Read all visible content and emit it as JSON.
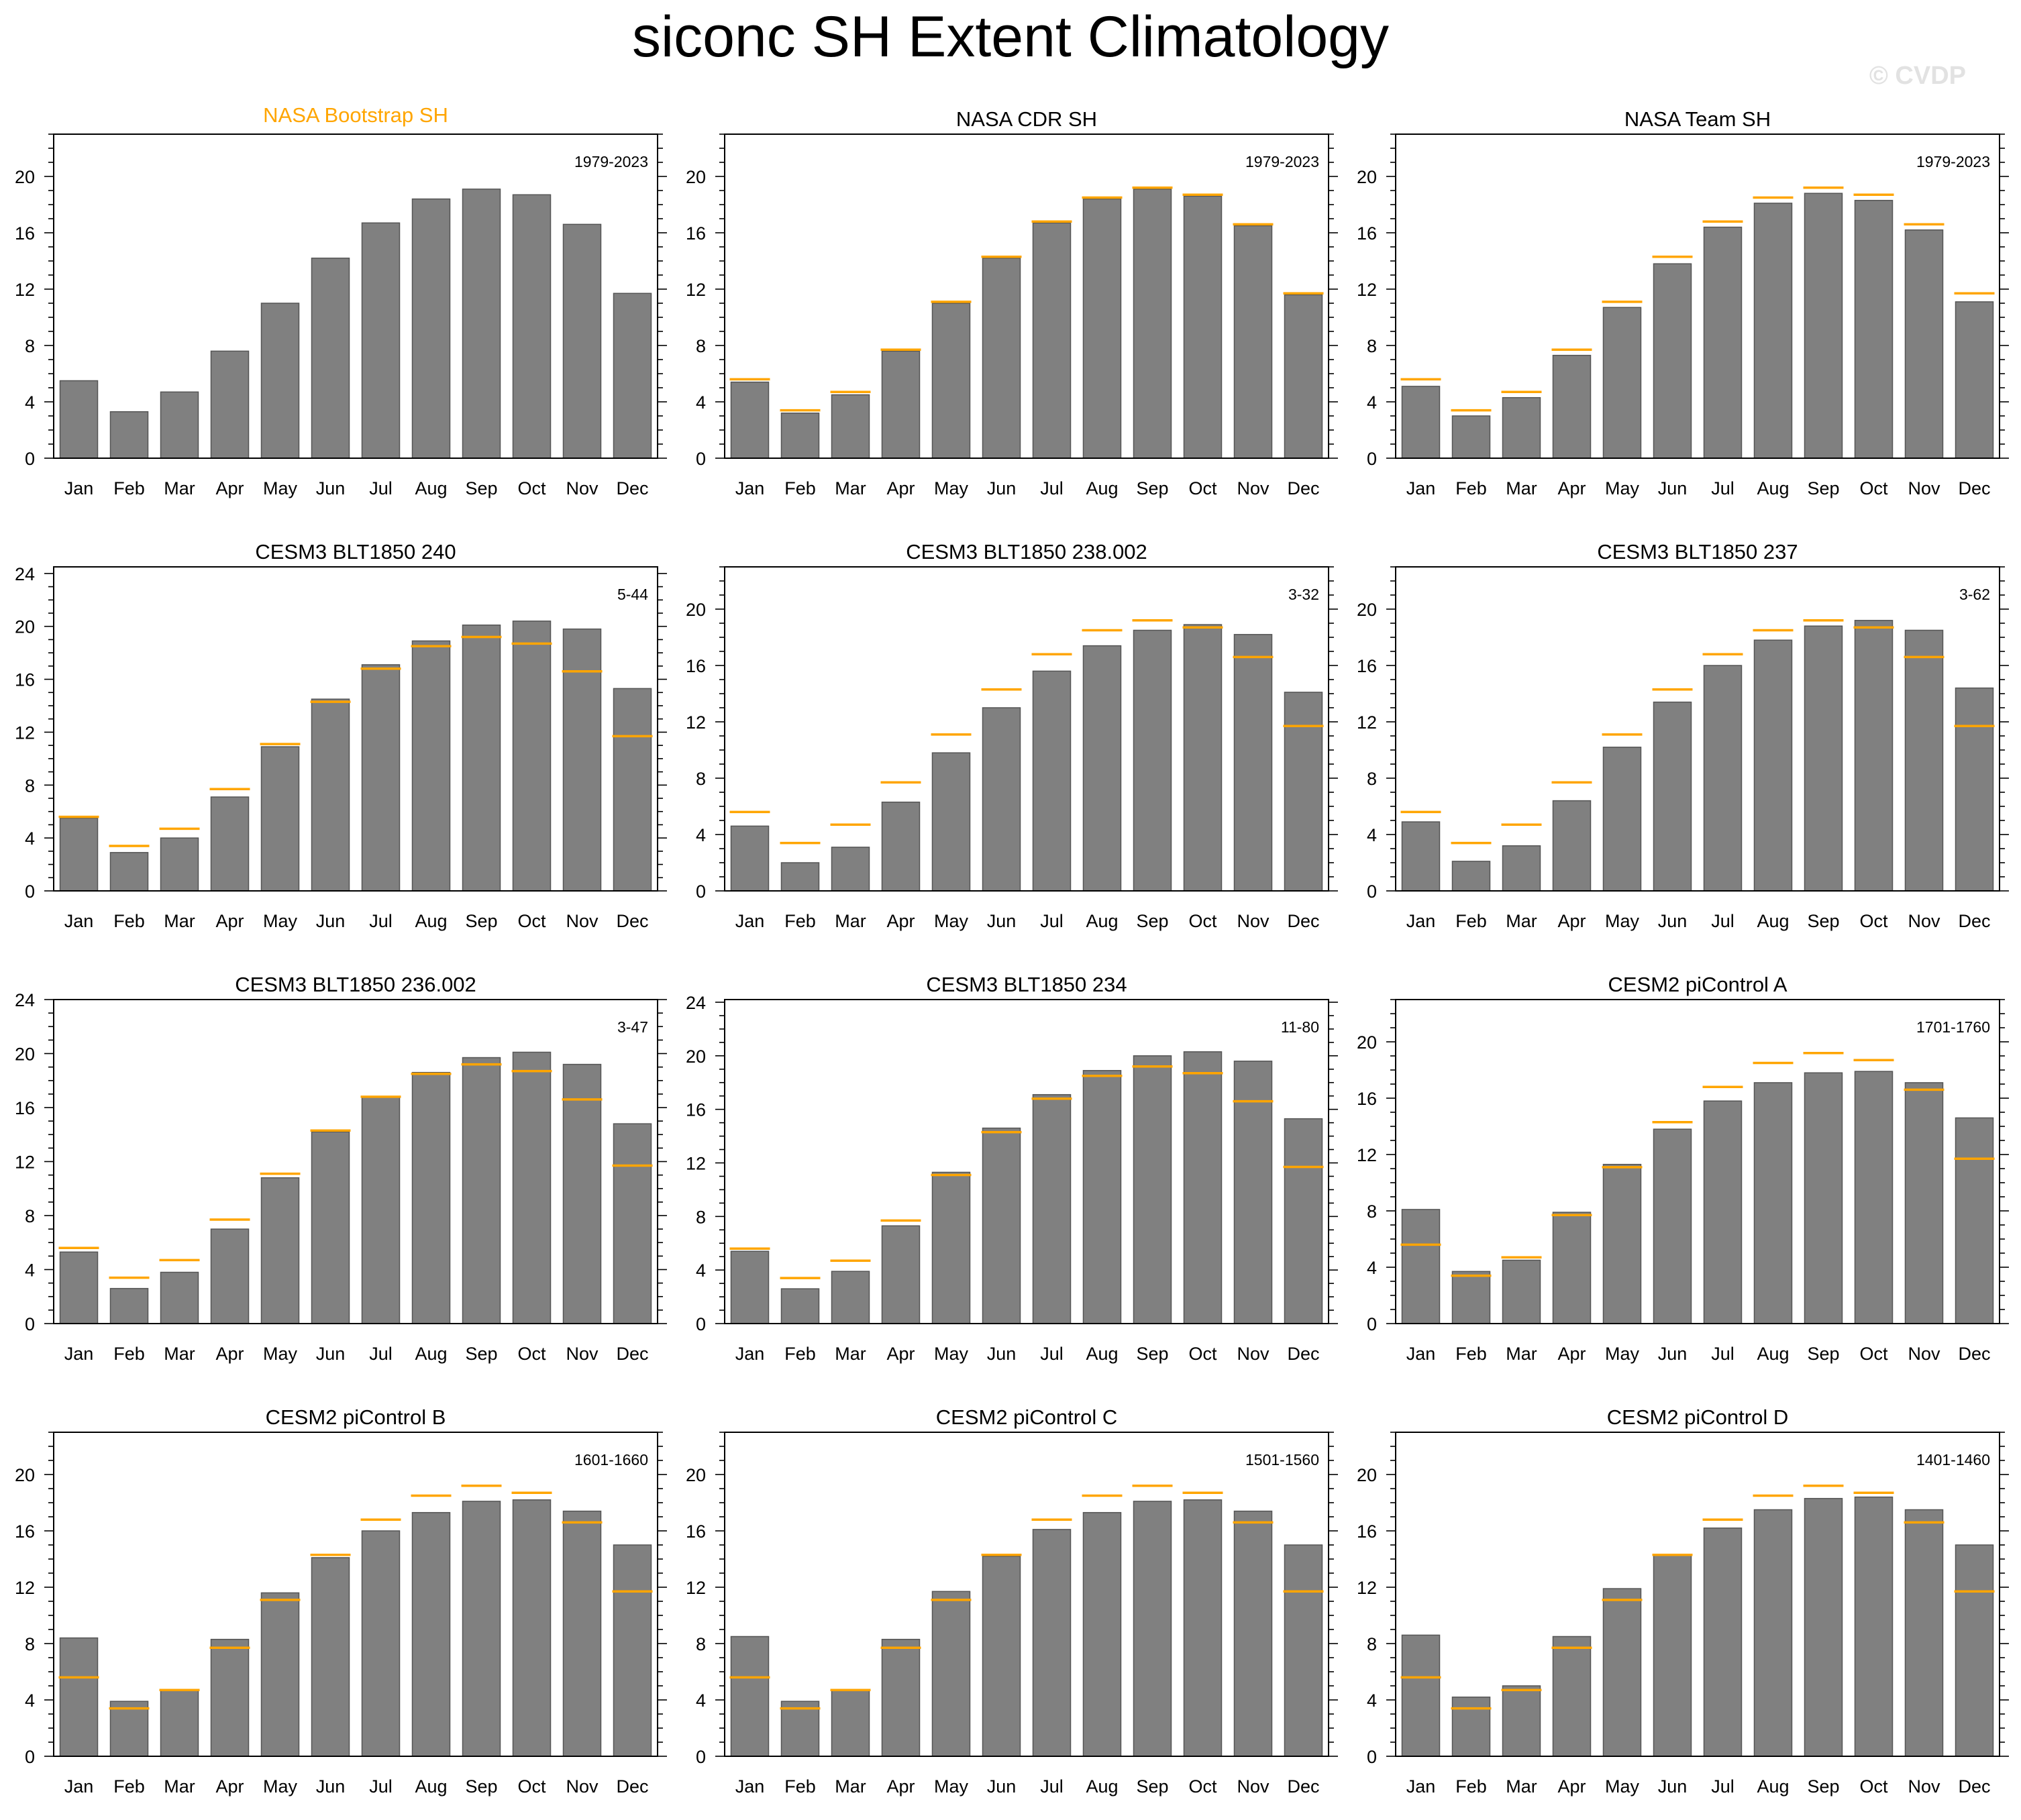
{
  "page": {
    "title": "siconc SH Extent Climatology",
    "watermark": "© CVDP"
  },
  "colors": {
    "bar_fill": "#808080",
    "bar_stroke": "#555555",
    "observation_marker": "#ffa500",
    "highlight_title": "#ffa500",
    "axes": "#000000"
  },
  "chart_data": [
    {
      "type": "bar",
      "title": "NASA Bootstrap SH",
      "title_highlight": true,
      "period": "1979-2023",
      "categories": [
        "Jan",
        "Feb",
        "Mar",
        "Apr",
        "May",
        "Jun",
        "Jul",
        "Aug",
        "Sep",
        "Oct",
        "Nov",
        "Dec"
      ],
      "values": [
        5.5,
        3.3,
        4.7,
        7.6,
        11.0,
        14.2,
        16.7,
        18.4,
        19.1,
        18.7,
        16.6,
        11.7
      ],
      "reference": [],
      "ylim": [
        0,
        23
      ],
      "yticks": [
        0,
        4,
        8,
        12,
        16,
        20
      ],
      "grid": false
    },
    {
      "type": "bar",
      "title": "NASA CDR SH",
      "period": "1979-2023",
      "categories": [
        "Jan",
        "Feb",
        "Mar",
        "Apr",
        "May",
        "Jun",
        "Jul",
        "Aug",
        "Sep",
        "Oct",
        "Nov",
        "Dec"
      ],
      "values": [
        5.4,
        3.2,
        4.5,
        7.6,
        11.0,
        14.2,
        16.7,
        18.4,
        19.1,
        18.6,
        16.5,
        11.6
      ],
      "reference": [
        5.6,
        3.4,
        4.7,
        7.7,
        11.1,
        14.3,
        16.8,
        18.5,
        19.2,
        18.7,
        16.6,
        11.7
      ],
      "ylim": [
        0,
        23
      ],
      "yticks": [
        0,
        4,
        8,
        12,
        16,
        20
      ],
      "grid": false
    },
    {
      "type": "bar",
      "title": "NASA Team SH",
      "period": "1979-2023",
      "categories": [
        "Jan",
        "Feb",
        "Mar",
        "Apr",
        "May",
        "Jun",
        "Jul",
        "Aug",
        "Sep",
        "Oct",
        "Nov",
        "Dec"
      ],
      "values": [
        5.1,
        3.0,
        4.3,
        7.3,
        10.7,
        13.8,
        16.4,
        18.1,
        18.8,
        18.3,
        16.2,
        11.1
      ],
      "reference": [
        5.6,
        3.4,
        4.7,
        7.7,
        11.1,
        14.3,
        16.8,
        18.5,
        19.2,
        18.7,
        16.6,
        11.7
      ],
      "ylim": [
        0,
        23
      ],
      "yticks": [
        0,
        4,
        8,
        12,
        16,
        20
      ],
      "grid": false
    },
    {
      "type": "bar",
      "title": "CESM3 BLT1850 240",
      "period": "5-44",
      "categories": [
        "Jan",
        "Feb",
        "Mar",
        "Apr",
        "May",
        "Jun",
        "Jul",
        "Aug",
        "Sep",
        "Oct",
        "Nov",
        "Dec"
      ],
      "values": [
        5.5,
        2.9,
        4.0,
        7.1,
        10.9,
        14.5,
        17.1,
        18.9,
        20.1,
        20.4,
        19.8,
        15.3
      ],
      "reference": [
        5.6,
        3.4,
        4.7,
        7.7,
        11.1,
        14.3,
        16.8,
        18.5,
        19.2,
        18.7,
        16.6,
        11.7
      ],
      "ylim": [
        0,
        24.5
      ],
      "yticks": [
        0,
        4,
        8,
        12,
        16,
        20,
        24
      ],
      "grid": false
    },
    {
      "type": "bar",
      "title": "CESM3 BLT1850 238.002",
      "period": "3-32",
      "categories": [
        "Jan",
        "Feb",
        "Mar",
        "Apr",
        "May",
        "Jun",
        "Jul",
        "Aug",
        "Sep",
        "Oct",
        "Nov",
        "Dec"
      ],
      "values": [
        4.6,
        2.0,
        3.1,
        6.3,
        9.8,
        13.0,
        15.6,
        17.4,
        18.5,
        18.9,
        18.2,
        14.1
      ],
      "reference": [
        5.6,
        3.4,
        4.7,
        7.7,
        11.1,
        14.3,
        16.8,
        18.5,
        19.2,
        18.7,
        16.6,
        11.7
      ],
      "ylim": [
        0,
        23
      ],
      "yticks": [
        0,
        4,
        8,
        12,
        16,
        20
      ],
      "grid": false
    },
    {
      "type": "bar",
      "title": "CESM3 BLT1850 237",
      "period": "3-62",
      "categories": [
        "Jan",
        "Feb",
        "Mar",
        "Apr",
        "May",
        "Jun",
        "Jul",
        "Aug",
        "Sep",
        "Oct",
        "Nov",
        "Dec"
      ],
      "values": [
        4.9,
        2.1,
        3.2,
        6.4,
        10.2,
        13.4,
        16.0,
        17.8,
        18.8,
        19.2,
        18.5,
        14.4
      ],
      "reference": [
        5.6,
        3.4,
        4.7,
        7.7,
        11.1,
        14.3,
        16.8,
        18.5,
        19.2,
        18.7,
        16.6,
        11.7
      ],
      "ylim": [
        0,
        23
      ],
      "yticks": [
        0,
        4,
        8,
        12,
        16,
        20
      ],
      "grid": false
    },
    {
      "type": "bar",
      "title": "CESM3 BLT1850 236.002",
      "period": "3-47",
      "categories": [
        "Jan",
        "Feb",
        "Mar",
        "Apr",
        "May",
        "Jun",
        "Jul",
        "Aug",
        "Sep",
        "Oct",
        "Nov",
        "Dec"
      ],
      "values": [
        5.3,
        2.6,
        3.8,
        7.0,
        10.8,
        14.2,
        16.8,
        18.6,
        19.7,
        20.1,
        19.2,
        14.8
      ],
      "reference": [
        5.6,
        3.4,
        4.7,
        7.7,
        11.1,
        14.3,
        16.8,
        18.5,
        19.2,
        18.7,
        16.6,
        11.7
      ],
      "ylim": [
        0,
        24
      ],
      "yticks": [
        0,
        4,
        8,
        12,
        16,
        20,
        24
      ],
      "grid": false
    },
    {
      "type": "bar",
      "title": "CESM3 BLT1850 234",
      "period": "11-80",
      "categories": [
        "Jan",
        "Feb",
        "Mar",
        "Apr",
        "May",
        "Jun",
        "Jul",
        "Aug",
        "Sep",
        "Oct",
        "Nov",
        "Dec"
      ],
      "values": [
        5.4,
        2.6,
        3.9,
        7.3,
        11.3,
        14.6,
        17.1,
        18.9,
        20.0,
        20.3,
        19.6,
        15.3
      ],
      "reference": [
        5.6,
        3.4,
        4.7,
        7.7,
        11.1,
        14.3,
        16.8,
        18.5,
        19.2,
        18.7,
        16.6,
        11.7
      ],
      "ylim": [
        0,
        24.2
      ],
      "yticks": [
        0,
        4,
        8,
        12,
        16,
        20,
        24
      ],
      "grid": false
    },
    {
      "type": "bar",
      "title": "CESM2 piControl A",
      "period": "1701-1760",
      "categories": [
        "Jan",
        "Feb",
        "Mar",
        "Apr",
        "May",
        "Jun",
        "Jul",
        "Aug",
        "Sep",
        "Oct",
        "Nov",
        "Dec"
      ],
      "values": [
        8.1,
        3.7,
        4.5,
        7.9,
        11.3,
        13.8,
        15.8,
        17.1,
        17.8,
        17.9,
        17.1,
        14.6
      ],
      "reference": [
        5.6,
        3.4,
        4.7,
        7.7,
        11.1,
        14.3,
        16.8,
        18.5,
        19.2,
        18.7,
        16.6,
        11.7
      ],
      "ylim": [
        0,
        23
      ],
      "yticks": [
        0,
        4,
        8,
        12,
        16,
        20
      ],
      "grid": false
    },
    {
      "type": "bar",
      "title": "CESM2 piControl B",
      "period": "1601-1660",
      "categories": [
        "Jan",
        "Feb",
        "Mar",
        "Apr",
        "May",
        "Jun",
        "Jul",
        "Aug",
        "Sep",
        "Oct",
        "Nov",
        "Dec"
      ],
      "values": [
        8.4,
        3.9,
        4.7,
        8.3,
        11.6,
        14.1,
        16.0,
        17.3,
        18.1,
        18.2,
        17.4,
        15.0
      ],
      "reference": [
        5.6,
        3.4,
        4.7,
        7.7,
        11.1,
        14.3,
        16.8,
        18.5,
        19.2,
        18.7,
        16.6,
        11.7
      ],
      "ylim": [
        0,
        23
      ],
      "yticks": [
        0,
        4,
        8,
        12,
        16,
        20
      ],
      "grid": false
    },
    {
      "type": "bar",
      "title": "CESM2 piControl C",
      "period": "1501-1560",
      "categories": [
        "Jan",
        "Feb",
        "Mar",
        "Apr",
        "May",
        "Jun",
        "Jul",
        "Aug",
        "Sep",
        "Oct",
        "Nov",
        "Dec"
      ],
      "values": [
        8.5,
        3.9,
        4.7,
        8.3,
        11.7,
        14.2,
        16.1,
        17.3,
        18.1,
        18.2,
        17.4,
        15.0
      ],
      "reference": [
        5.6,
        3.4,
        4.7,
        7.7,
        11.1,
        14.3,
        16.8,
        18.5,
        19.2,
        18.7,
        16.6,
        11.7
      ],
      "ylim": [
        0,
        23
      ],
      "yticks": [
        0,
        4,
        8,
        12,
        16,
        20
      ],
      "grid": false
    },
    {
      "type": "bar",
      "title": "CESM2 piControl D",
      "period": "1401-1460",
      "categories": [
        "Jan",
        "Feb",
        "Mar",
        "Apr",
        "May",
        "Jun",
        "Jul",
        "Aug",
        "Sep",
        "Oct",
        "Nov",
        "Dec"
      ],
      "values": [
        8.6,
        4.2,
        5.0,
        8.5,
        11.9,
        14.3,
        16.2,
        17.5,
        18.3,
        18.4,
        17.5,
        15.0
      ],
      "reference": [
        5.6,
        3.4,
        4.7,
        7.7,
        11.1,
        14.3,
        16.8,
        18.5,
        19.2,
        18.7,
        16.6,
        11.7
      ],
      "ylim": [
        0,
        23
      ],
      "yticks": [
        0,
        4,
        8,
        12,
        16,
        20
      ],
      "grid": false
    }
  ]
}
